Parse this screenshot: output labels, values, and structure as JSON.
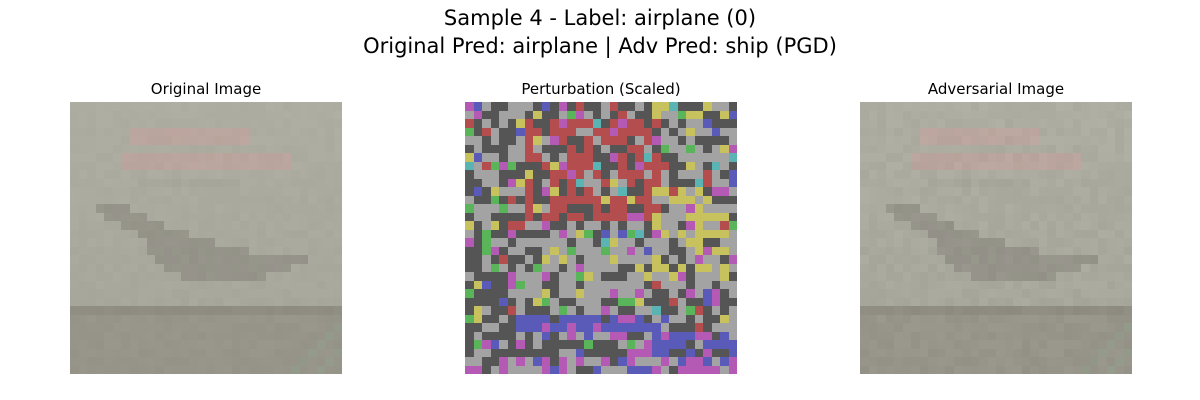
{
  "figure": {
    "title_line1": "Sample 4 - Label: airplane (0)",
    "title_line2": "Original Pred: airplane | Adv Pred: ship (PGD)"
  },
  "panels": [
    {
      "title": "Original Image"
    },
    {
      "title": "Perturbation (Scaled)"
    },
    {
      "title": "Adversarial Image"
    }
  ],
  "colors": {
    "background": "#ffffff",
    "image_base": "#a8a79c",
    "image_band": "#8f8c80",
    "image_text_red": "#c6a09c",
    "image_plane": "#8c8a80",
    "image_stripe": "#8fa08c",
    "pert_gray": "#a3a3a3",
    "pert_dark": "#555555",
    "pert_red": "#b44d4d",
    "pert_yellow": "#c8c25e",
    "pert_blue": "#5a5ab8",
    "pert_magenta": "#b45ab4",
    "pert_green": "#5ab45a",
    "pert_cyan": "#5ab4b4"
  }
}
